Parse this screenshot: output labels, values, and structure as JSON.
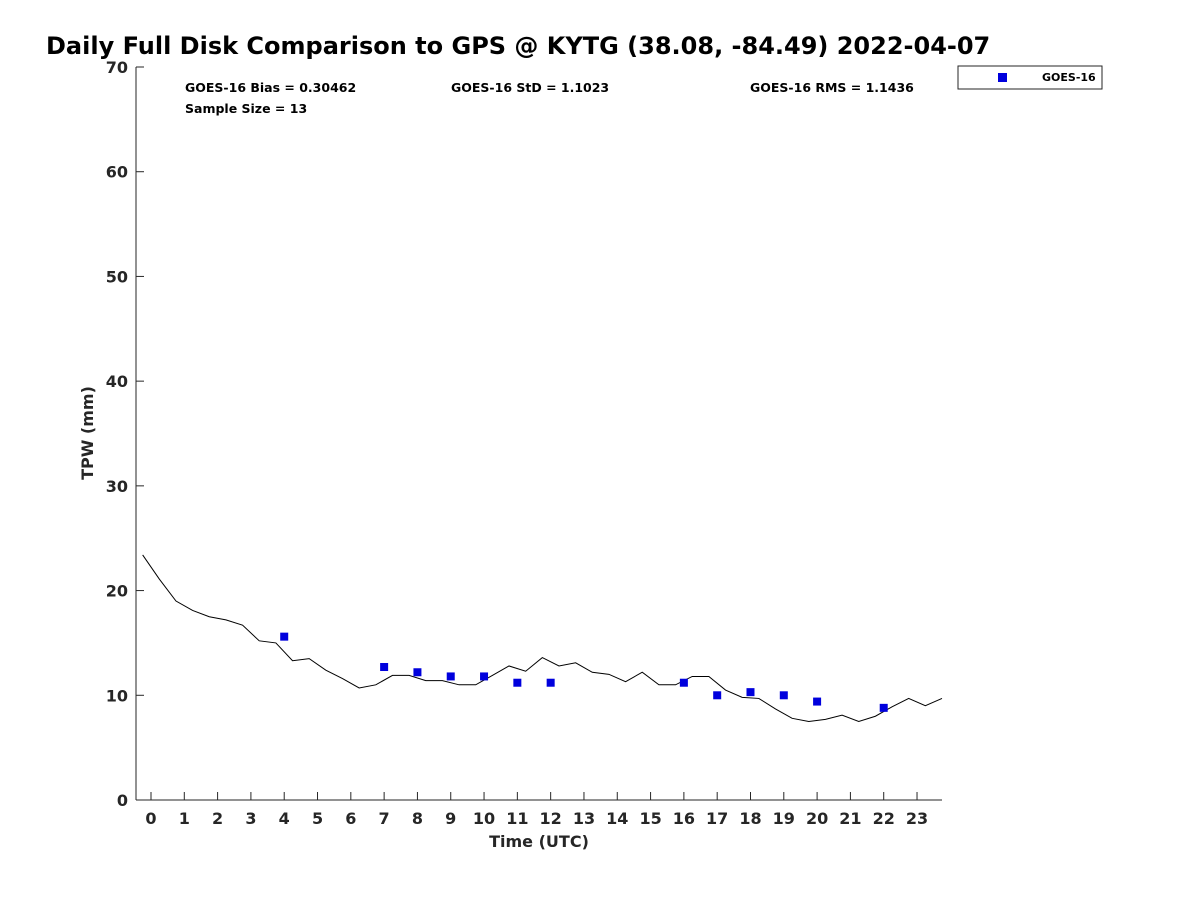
{
  "chart_data": {
    "type": "scatter",
    "title": "Daily Full Disk Comparison to GPS @ KYTG (38.08, -84.49) 2022-04-07",
    "xlabel": "Time (UTC)",
    "ylabel": "TPW (mm)",
    "xlim": [
      -0.45,
      23.75
    ],
    "ylim": [
      0,
      70
    ],
    "xticks": [
      0,
      1,
      2,
      3,
      4,
      5,
      6,
      7,
      8,
      9,
      10,
      11,
      12,
      13,
      14,
      15,
      16,
      17,
      18,
      19,
      20,
      21,
      22,
      23
    ],
    "yticks": [
      0,
      10,
      20,
      30,
      40,
      50,
      60,
      70
    ],
    "grid": false,
    "legend_placement": "outside-top-right",
    "stats": {
      "bias": "GOES-16 Bias = 0.30462",
      "std": "GOES-16 StD = 1.1023",
      "rms": "GOES-16 RMS = 1.1436",
      "sample_size": "Sample Size = 13"
    },
    "series": [
      {
        "name": "GOES-16",
        "kind": "scatter",
        "marker": "square",
        "color": "#0000dd",
        "x": [
          4,
          7,
          8,
          9,
          10,
          11,
          12,
          16,
          17,
          18,
          19,
          20,
          22
        ],
        "y": [
          15.6,
          12.7,
          12.2,
          11.8,
          11.8,
          11.2,
          11.2,
          11.2,
          10.0,
          10.3,
          10.0,
          9.4,
          8.8
        ]
      },
      {
        "kind": "line",
        "color": "#000000",
        "x": [
          -0.25,
          0.25,
          0.75,
          1.25,
          1.75,
          2.25,
          2.75,
          3.25,
          3.75,
          4.25,
          4.75,
          5.25,
          5.75,
          6.25,
          6.75,
          7.25,
          7.75,
          8.25,
          8.75,
          9.25,
          9.75,
          10.25,
          10.75,
          11.25,
          11.75,
          12.25,
          12.75,
          13.25,
          13.75,
          14.25,
          14.75,
          15.25,
          15.75,
          16.25,
          16.75,
          17.25,
          17.75,
          18.25,
          18.75,
          19.25,
          19.75,
          20.25,
          20.75,
          21.25,
          21.75,
          22.25,
          22.75,
          23.25,
          23.75
        ],
        "y": [
          23.4,
          21.1,
          19.0,
          18.1,
          17.5,
          17.2,
          16.7,
          15.2,
          15.0,
          13.3,
          13.5,
          12.4,
          11.6,
          10.7,
          11.0,
          11.9,
          11.9,
          11.4,
          11.4,
          11.0,
          11.0,
          11.9,
          12.8,
          12.3,
          13.6,
          12.8,
          13.1,
          12.2,
          12.0,
          11.3,
          12.2,
          11.0,
          11.0,
          11.8,
          11.8,
          10.5,
          9.8,
          9.7,
          8.7,
          7.8,
          7.5,
          7.7,
          8.1,
          7.5,
          8.0,
          8.9,
          9.7,
          9.0,
          9.7
        ]
      }
    ]
  }
}
